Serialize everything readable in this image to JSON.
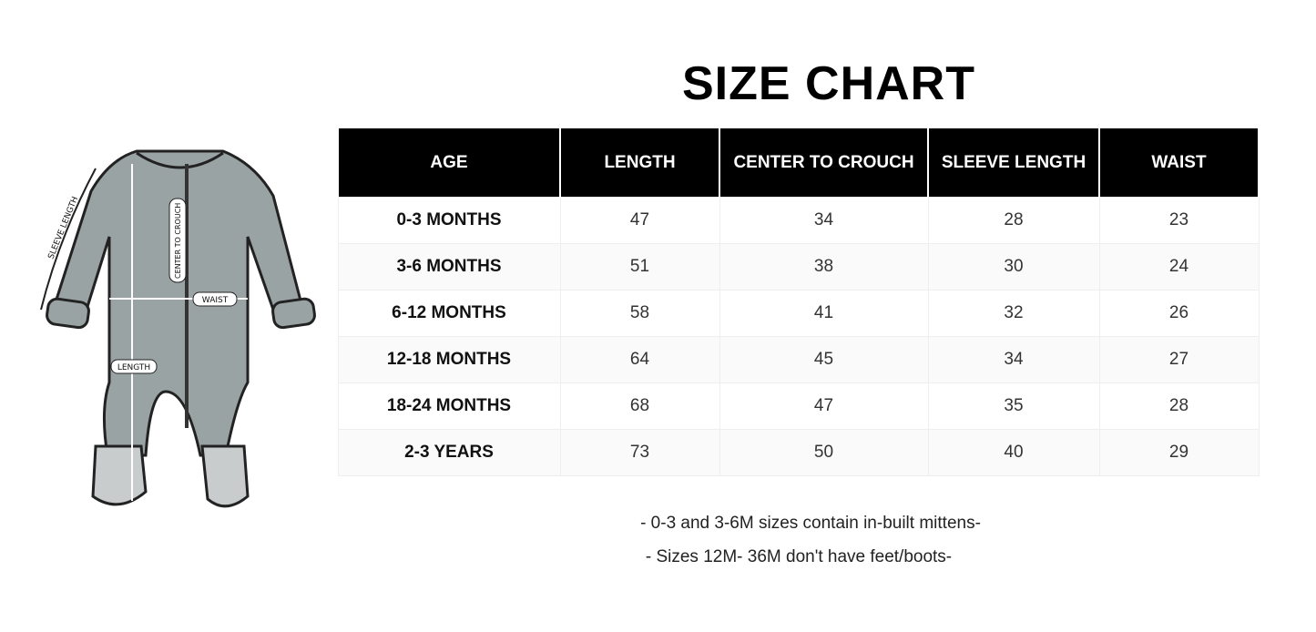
{
  "title": "SIZE CHART",
  "illustration": {
    "sleeve_label": "SLEEVE LENGTH",
    "center_label": "CENTER TO CROUCH",
    "waist_label": "WAIST",
    "length_label": "LENGTH"
  },
  "table": {
    "headers": [
      "AGE",
      "LENGTH",
      "CENTER TO CROUCH",
      "SLEEVE LENGTH",
      "WAIST"
    ],
    "rows": [
      [
        "0-3 MONTHS",
        47,
        34,
        28,
        23
      ],
      [
        "3-6 MONTHS",
        51,
        38,
        30,
        24
      ],
      [
        "6-12 MONTHS",
        58,
        41,
        32,
        26
      ],
      [
        "12-18 MONTHS",
        64,
        45,
        34,
        27
      ],
      [
        "18-24 MONTHS",
        68,
        47,
        35,
        28
      ],
      [
        "2-3 YEARS",
        73,
        50,
        40,
        29
      ]
    ]
  },
  "notes": [
    "- 0-3 and 3-6M sizes contain in-built mittens-",
    "- Sizes 12M- 36M don't have feet/boots-"
  ]
}
